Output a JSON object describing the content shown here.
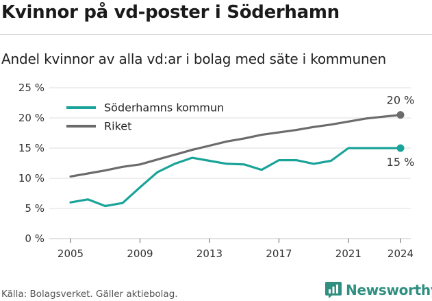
{
  "title": "Kvinnor på vd-poster i Söderhamn",
  "subtitle": "Andel kvinnor av alla vd:ar i bolag med säte i kommunen",
  "footer": "Källa: Bolagsverket. Gäller aktiebolag.",
  "brand": "Newsworthy",
  "colors": {
    "brand": "#2f8f80",
    "grid": "#d0d0d0",
    "axis": "#555555"
  },
  "chart_data": {
    "type": "line",
    "x": [
      2005,
      2006,
      2007,
      2008,
      2009,
      2010,
      2011,
      2012,
      2013,
      2014,
      2015,
      2016,
      2017,
      2018,
      2019,
      2020,
      2021,
      2022,
      2023,
      2024
    ],
    "series": [
      {
        "name": "Söderhamns kommun",
        "color": "#1aa399",
        "values": [
          6.0,
          6.5,
          5.4,
          5.9,
          8.5,
          11.0,
          12.4,
          13.4,
          12.9,
          12.4,
          12.3,
          11.4,
          13.0,
          13.0,
          12.4,
          12.9,
          15.0,
          15.0,
          15.0,
          15.0
        ],
        "end_label": "15 %"
      },
      {
        "name": "Riket",
        "color": "#6b6b6d",
        "values": [
          10.3,
          10.8,
          11.3,
          11.9,
          12.3,
          13.1,
          13.9,
          14.7,
          15.4,
          16.1,
          16.6,
          17.2,
          17.6,
          18.0,
          18.5,
          18.9,
          19.4,
          19.9,
          20.2,
          20.5
        ],
        "end_label": "20 %"
      }
    ],
    "y_ticks": [
      0,
      5,
      10,
      15,
      20,
      25
    ],
    "y_tick_labels": [
      "0 %",
      "5 %",
      "10 %",
      "15 %",
      "20 %",
      "25 %"
    ],
    "x_ticks": [
      2005,
      2009,
      2013,
      2017,
      2021,
      2024
    ],
    "x_tick_labels": [
      "2005",
      "2009",
      "2013",
      "2017",
      "2021",
      "2024"
    ],
    "xlim": [
      2005,
      2024
    ],
    "ylim": [
      0,
      25
    ],
    "grid": true,
    "legend": "top-left"
  }
}
